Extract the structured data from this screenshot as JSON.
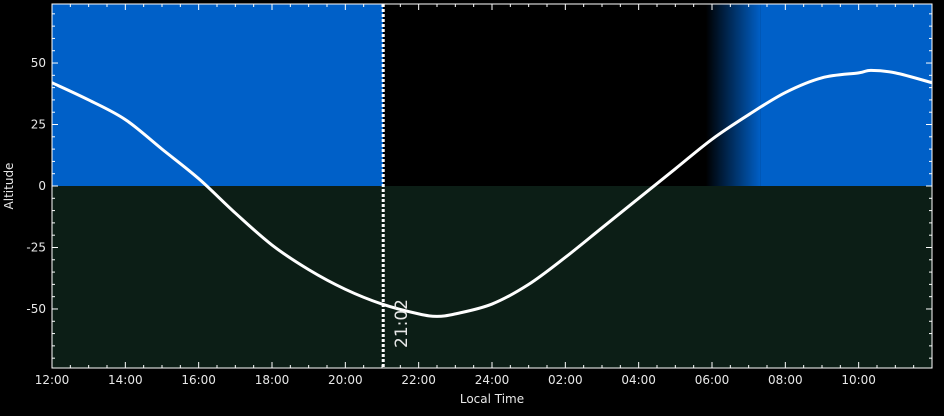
{
  "chart_data": {
    "type": "line",
    "xlabel": "Local Time",
    "ylabel": "Altitude",
    "xlim_hours_from_start": [
      0,
      24
    ],
    "x_tick_labels": [
      "12:00",
      "14:00",
      "16:00",
      "18:00",
      "20:00",
      "22:00",
      "24:00",
      "02:00",
      "04:00",
      "06:00",
      "08:00",
      "10:00"
    ],
    "ylim": [
      -74,
      74
    ],
    "y_ticks": [
      50,
      25,
      0,
      -25,
      -50
    ],
    "series": [
      {
        "x": [
          "12:00",
          "13:00",
          "14:00",
          "15:00",
          "16:00",
          "17:00",
          "18:00",
          "19:00",
          "20:00",
          "21:00",
          "22:00",
          "22:30",
          "23:00",
          "24:00",
          "01:00",
          "02:00",
          "03:00",
          "04:00",
          "05:00",
          "06:00",
          "07:00",
          "08:00",
          "09:00",
          "10:00",
          "10:20",
          "11:00",
          "12:00"
        ],
        "y": [
          42,
          35,
          27,
          15,
          3,
          -11,
          -24,
          -34,
          -42,
          -48,
          -52,
          -53,
          -52,
          -48,
          -40,
          -29,
          -17,
          -5,
          7,
          19,
          29,
          38,
          44,
          46,
          47,
          46,
          42
        ],
        "color": "#ffffff"
      }
    ],
    "current_time_marker": {
      "label": "21:02",
      "time": "21:02"
    },
    "background": {
      "daylight_color": "#0060c8",
      "night_color": "#000000",
      "below_horizon_color": "#0c1e16",
      "sunset": "21:02",
      "dawn_start": "05:50",
      "sunrise": "07:20"
    },
    "grid": false,
    "legend": "none"
  }
}
